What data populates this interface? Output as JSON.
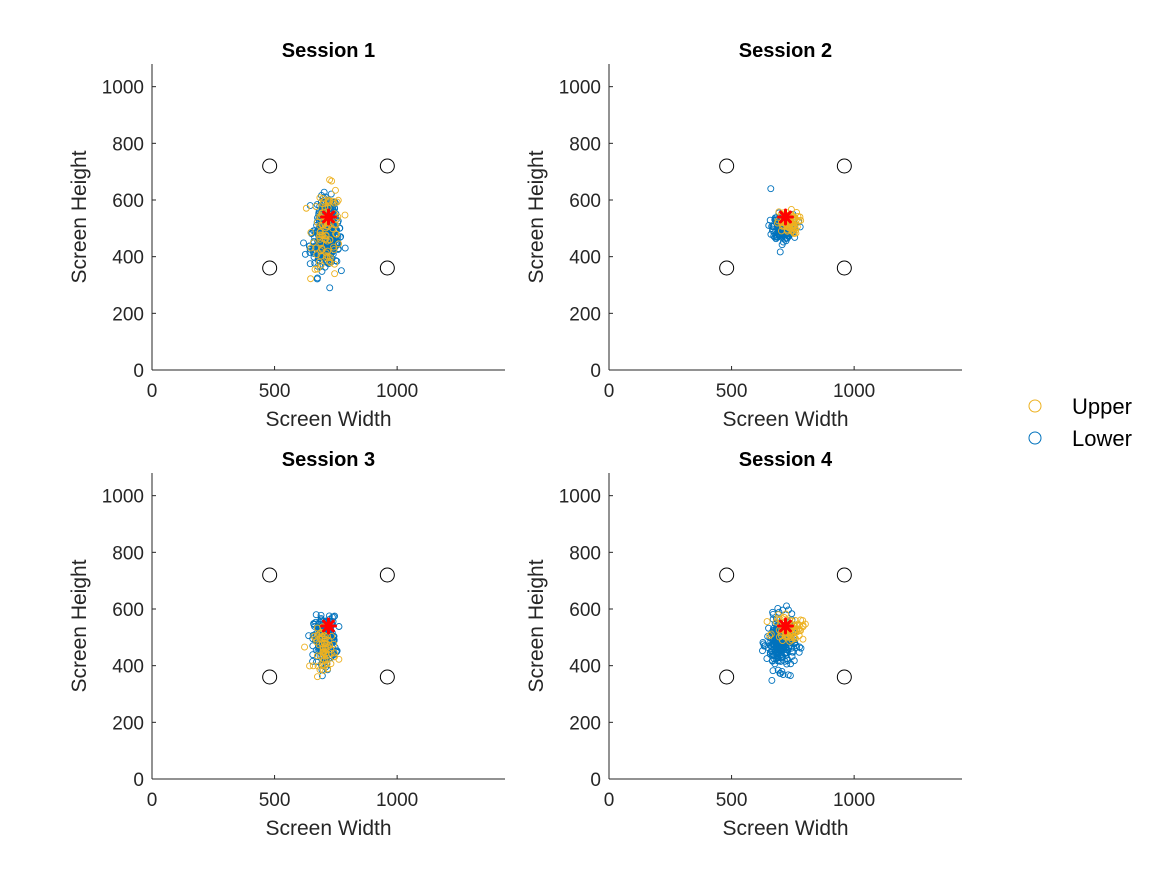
{
  "chart_data": [
    {
      "type": "scatter",
      "title": "Session 1",
      "xlabel": "Screen Width",
      "ylabel": "Screen Height",
      "xlim": [
        0,
        1440
      ],
      "ylim": [
        0,
        1080
      ],
      "xticks": [
        "0",
        "500",
        "1000"
      ],
      "yticks": [
        "0",
        "200",
        "400",
        "600",
        "800",
        "1000"
      ],
      "targets": [
        [
          480,
          720
        ],
        [
          960,
          720
        ],
        [
          480,
          360
        ],
        [
          960,
          360
        ]
      ],
      "center": [
        720,
        540
      ],
      "clusters": [
        {
          "series": "Lower",
          "cx": 715,
          "cy": 540,
          "sx": 20,
          "sy": 35,
          "n": 200
        },
        {
          "series": "Lower",
          "cx": 705,
          "cy": 440,
          "sx": 30,
          "sy": 35,
          "n": 220
        },
        {
          "series": "Upper",
          "cx": 715,
          "cy": 500,
          "sx": 30,
          "sy": 70,
          "n": 90
        }
      ],
      "points": [
        {
          "series": "Lower",
          "x": 725,
          "y": 290
        },
        {
          "series": "Lower",
          "x": 675,
          "y": 325
        },
        {
          "series": "Upper",
          "x": 690,
          "y": 370
        },
        {
          "series": "Upper",
          "x": 745,
          "y": 340
        },
        {
          "series": "Upper",
          "x": 685,
          "y": 608
        },
        {
          "series": "Lower",
          "x": 765,
          "y": 500
        }
      ]
    },
    {
      "type": "scatter",
      "title": "Session 2",
      "xlabel": "Screen Width",
      "ylabel": "Screen Height",
      "xlim": [
        0,
        1440
      ],
      "ylim": [
        0,
        1080
      ],
      "xticks": [
        "0",
        "500",
        "1000"
      ],
      "yticks": [
        "0",
        "200",
        "400",
        "600",
        "800",
        "1000"
      ],
      "targets": [
        [
          480,
          720
        ],
        [
          960,
          720
        ],
        [
          480,
          360
        ],
        [
          960,
          360
        ]
      ],
      "center": [
        720,
        540
      ],
      "clusters": [
        {
          "series": "Lower",
          "cx": 710,
          "cy": 505,
          "sx": 20,
          "sy": 22,
          "n": 230
        },
        {
          "series": "Upper",
          "cx": 730,
          "cy": 520,
          "sx": 22,
          "sy": 20,
          "n": 70
        }
      ],
      "points": [
        {
          "series": "Lower",
          "x": 660,
          "y": 640
        },
        {
          "series": "Lower",
          "x": 780,
          "y": 505
        }
      ]
    },
    {
      "type": "scatter",
      "title": "Session 3",
      "xlabel": "Screen Width",
      "ylabel": "Screen Height",
      "xlim": [
        0,
        1440
      ],
      "ylim": [
        0,
        1080
      ],
      "xticks": [
        "0",
        "500",
        "1000"
      ],
      "yticks": [
        "0",
        "200",
        "400",
        "600",
        "800",
        "1000"
      ],
      "targets": [
        [
          480,
          720
        ],
        [
          960,
          720
        ],
        [
          480,
          360
        ],
        [
          960,
          360
        ]
      ],
      "center": [
        720,
        540
      ],
      "clusters": [
        {
          "series": "Lower",
          "cx": 705,
          "cy": 490,
          "sx": 22,
          "sy": 40,
          "n": 240
        },
        {
          "series": "Upper",
          "cx": 705,
          "cy": 460,
          "sx": 22,
          "sy": 35,
          "n": 60
        }
      ],
      "points": [
        {
          "series": "Lower",
          "x": 655,
          "y": 415
        },
        {
          "series": "Upper",
          "x": 705,
          "y": 400
        },
        {
          "series": "Lower",
          "x": 745,
          "y": 575
        }
      ]
    },
    {
      "type": "scatter",
      "title": "Session 4",
      "xlabel": "Screen Width",
      "ylabel": "Screen Height",
      "xlim": [
        0,
        1440
      ],
      "ylim": [
        0,
        1080
      ],
      "xticks": [
        "0",
        "500",
        "1000"
      ],
      "yticks": [
        "0",
        "200",
        "400",
        "600",
        "800",
        "1000"
      ],
      "targets": [
        [
          480,
          720
        ],
        [
          960,
          720
        ],
        [
          480,
          360
        ],
        [
          960,
          360
        ]
      ],
      "center": [
        720,
        540
      ],
      "clusters": [
        {
          "series": "Lower",
          "cx": 700,
          "cy": 480,
          "sx": 28,
          "sy": 45,
          "n": 260
        },
        {
          "series": "Upper",
          "cx": 735,
          "cy": 530,
          "sx": 30,
          "sy": 20,
          "n": 70
        }
      ],
      "points": [
        {
          "series": "Upper",
          "x": 775,
          "y": 530
        },
        {
          "series": "Lower",
          "x": 740,
          "y": 365
        },
        {
          "series": "Upper",
          "x": 715,
          "y": 570
        }
      ]
    }
  ],
  "legend": {
    "position": "right",
    "entries": [
      {
        "label": "Upper",
        "color": "#EDB120"
      },
      {
        "label": "Lower",
        "color": "#0072BD"
      }
    ]
  },
  "colors": {
    "upper": "#EDB120",
    "lower": "#0072BD",
    "center": "#FF0000",
    "target": "#000000"
  }
}
